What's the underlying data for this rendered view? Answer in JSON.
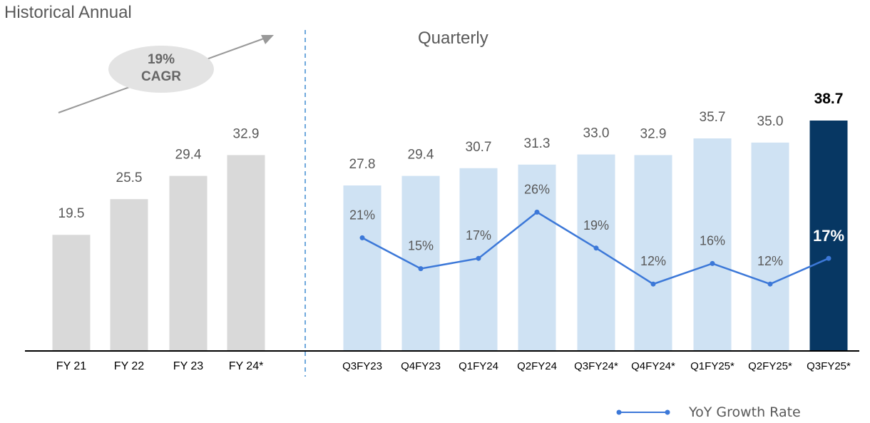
{
  "section_titles": {
    "annual": "Historical Annual",
    "quarterly": "Quarterly"
  },
  "cagr": {
    "percent": "19%",
    "label": "CAGR"
  },
  "legend": {
    "label": "YoY Growth Rate"
  },
  "colors": {
    "annual_bar": "#d9d9d9",
    "quarter_bar": "#cfe2f3",
    "highlight_bar": "#073763",
    "growth_line": "#3c78d8",
    "axis": "#000000",
    "divider": "#6fa8dc",
    "label_text": "#595959"
  },
  "chart_data": [
    {
      "type": "bar",
      "title": "Historical Annual",
      "categories": [
        "FY 21",
        "FY 22",
        "FY 23",
        "FY 24*"
      ],
      "values": [
        19.5,
        25.5,
        29.4,
        32.9
      ],
      "data_labels": [
        "19.5",
        "25.5",
        "29.4",
        "32.9"
      ],
      "annotation": "19% CAGR"
    },
    {
      "type": "bar",
      "title": "Quarterly",
      "categories": [
        "Q3FY23",
        "Q4FY23",
        "Q1FY24",
        "Q2FY24",
        "Q3FY24*",
        "Q4FY24*",
        "Q1FY25*",
        "Q2FY25*",
        "Q3FY25*"
      ],
      "values": [
        27.8,
        29.4,
        30.7,
        31.3,
        33.0,
        32.9,
        35.7,
        35.0,
        38.7
      ],
      "data_labels": [
        "27.8",
        "29.4",
        "30.7",
        "31.3",
        "33.0",
        "32.9",
        "35.7",
        "35.0",
        "38.7"
      ],
      "highlight_index": 8,
      "series": [
        {
          "name": "YoY Growth Rate",
          "type": "line",
          "values": [
            21,
            15,
            17,
            26,
            19,
            12,
            16,
            12,
            17
          ],
          "labels": [
            "21%",
            "15%",
            "17%",
            "26%",
            "19%",
            "12%",
            "16%",
            "12%",
            "17%"
          ]
        }
      ]
    }
  ]
}
